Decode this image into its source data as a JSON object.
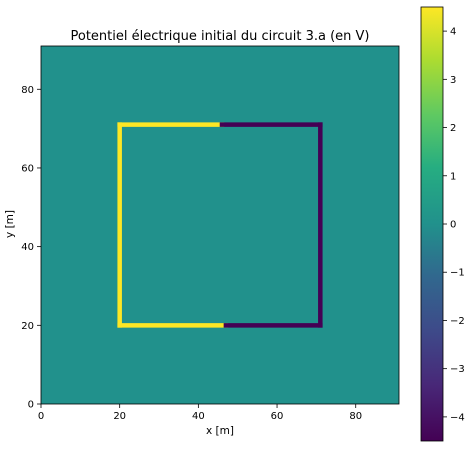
{
  "chart_data": {
    "type": "heatmap",
    "title": "Potentiel électrique initial du circuit 3.a (en V)",
    "xlabel": "x [m]",
    "ylabel": "y [m]",
    "xlim": [
      0,
      91
    ],
    "ylim": [
      0,
      91
    ],
    "x_ticks": [
      0,
      20,
      40,
      60,
      80
    ],
    "y_ticks": [
      0,
      20,
      40,
      60,
      80
    ],
    "background_value": 0,
    "colormap": "viridis",
    "colorbar": {
      "range": [
        -4.5,
        4.5
      ],
      "ticks": [
        4,
        3,
        2,
        1,
        0,
        -1,
        -2,
        -3,
        -4
      ],
      "tick_labels": [
        "4",
        "3",
        "2",
        "1",
        "0",
        "−1",
        "−2",
        "−3",
        "−4"
      ],
      "top_color": "#fde725",
      "bottom_color": "#440154",
      "mid_color": "#21918c"
    },
    "segments": [
      {
        "value": 4.5,
        "x": [
          20,
          46
        ],
        "y": [
          71,
          71
        ]
      },
      {
        "value": 4.5,
        "x": [
          20,
          20
        ],
        "y": [
          20,
          71
        ]
      },
      {
        "value": 4.5,
        "x": [
          20,
          47
        ],
        "y": [
          20,
          20
        ]
      },
      {
        "value": -4.5,
        "x": [
          46,
          71
        ],
        "y": [
          71,
          71
        ]
      },
      {
        "value": -4.5,
        "x": [
          71,
          71
        ],
        "y": [
          20,
          71
        ]
      },
      {
        "value": -4.5,
        "x": [
          47,
          71
        ],
        "y": [
          20,
          20
        ]
      }
    ],
    "grid": false
  }
}
